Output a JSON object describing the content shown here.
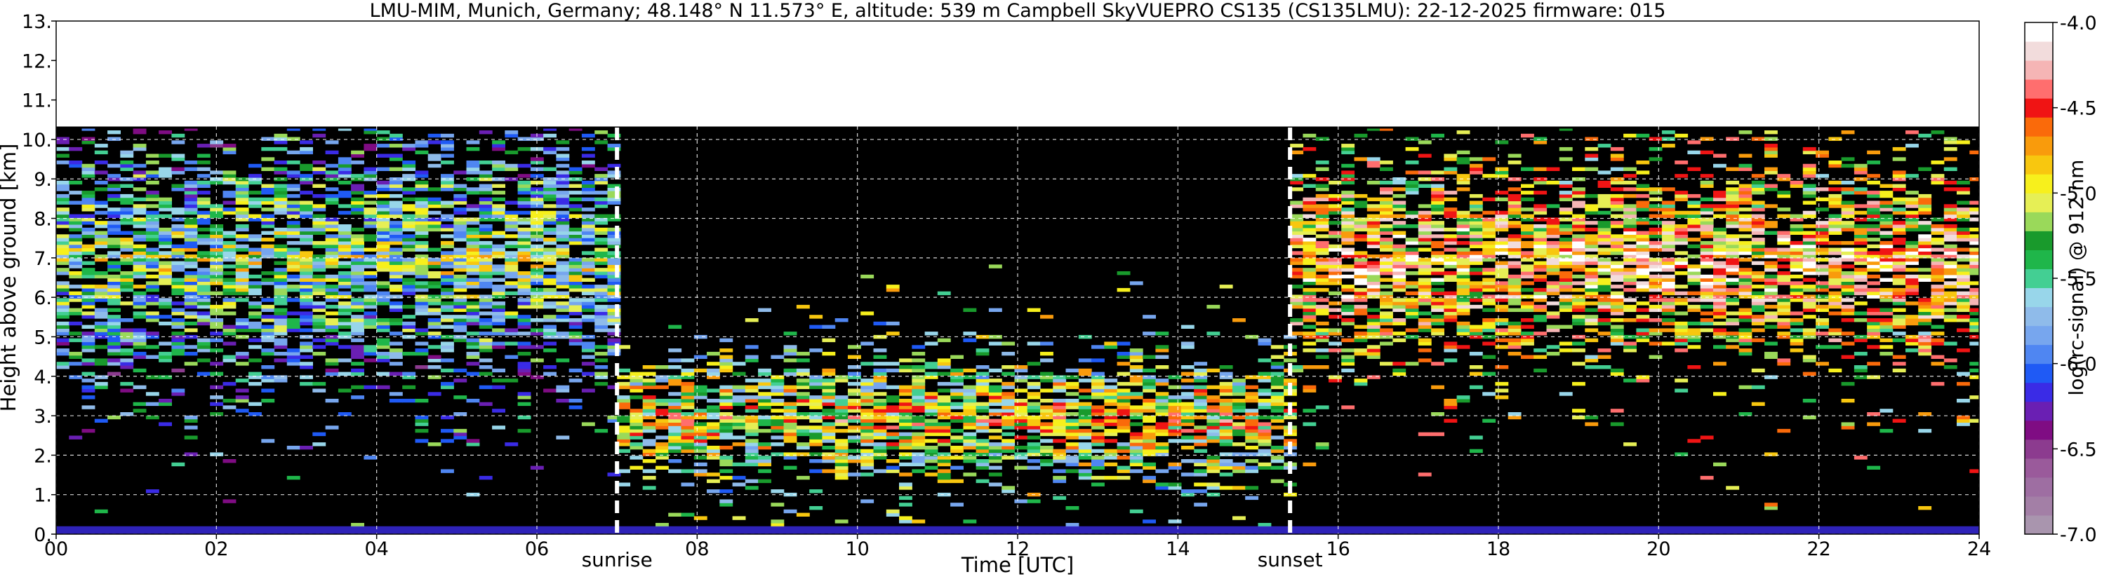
{
  "chart_data": {
    "type": "heatmap",
    "title": "LMU-MIM, Munich, Germany; 48.148° N 11.573° E, altitude: 539 m    Campbell SkyVUEPRO CS135 (CS135LMU): 22-12-2025    firmware: 015",
    "xlabel": "Time [UTC]",
    "ylabel": "Height above ground [km]",
    "xlim": [
      0,
      24
    ],
    "ylim": [
      0,
      13
    ],
    "x_ticks": [
      0,
      2,
      4,
      6,
      8,
      10,
      12,
      14,
      16,
      18,
      20,
      22,
      24
    ],
    "x_tick_labels": [
      "00",
      "02",
      "04",
      "06",
      "08",
      "10",
      "12",
      "14",
      "16",
      "18",
      "20",
      "22",
      "24"
    ],
    "y_ticks": [
      0,
      1,
      2,
      3,
      4,
      5,
      6,
      7,
      8,
      9,
      10,
      11,
      12,
      13
    ],
    "y_tick_labels": [
      "0.",
      "1.",
      "2.",
      "3.",
      "4.",
      "5.",
      "6.",
      "7.",
      "8.",
      "9.",
      "10.",
      "11.",
      "12.",
      "13."
    ],
    "grid": true,
    "data_top_km": 10.3,
    "events": [
      {
        "label": "sunrise",
        "time": 7.0
      },
      {
        "label": "sunset",
        "time": 15.4
      }
    ],
    "colorbar": {
      "label": "log(rc-signal) @ 912 nm",
      "min": -7.0,
      "max": -4.0,
      "ticks": [
        -7.0,
        -6.5,
        -6.0,
        -5.5,
        -5.0,
        -4.5,
        -4.0
      ],
      "tick_labels": [
        "-7.0",
        "-6.5",
        "-6.0",
        "-5.5",
        "-5.0",
        "-4.5",
        "-4.0"
      ],
      "colors": [
        "#a995ae",
        "#a37fa6",
        "#9e6ea2",
        "#9a5a9b",
        "#8c3b8f",
        "#7f0c83",
        "#6a1fb3",
        "#3a2be6",
        "#1f5af5",
        "#4f86f2",
        "#77a6ee",
        "#8fbbea",
        "#98d6ea",
        "#43cf93",
        "#1fb64a",
        "#199a2c",
        "#9ad95a",
        "#e6ef55",
        "#f7f01c",
        "#f8c70f",
        "#f99b0c",
        "#fa6a0a",
        "#f01414",
        "#ff6e6e",
        "#f5b5b5",
        "#f2dcdc",
        "#ffffff"
      ]
    },
    "backscatter_layers": [
      {
        "start": 0,
        "end": 7.0,
        "bottom_km": 4.3,
        "top_km": 9.6,
        "level": -5.8
      },
      {
        "start": 7.0,
        "end": 15.4,
        "bottom_km": 1.5,
        "top_km": 4.2,
        "level": -5.4
      },
      {
        "start": 15.4,
        "end": 24,
        "bottom_km": 4.6,
        "top_km": 9.0,
        "level": -5.0
      }
    ]
  }
}
